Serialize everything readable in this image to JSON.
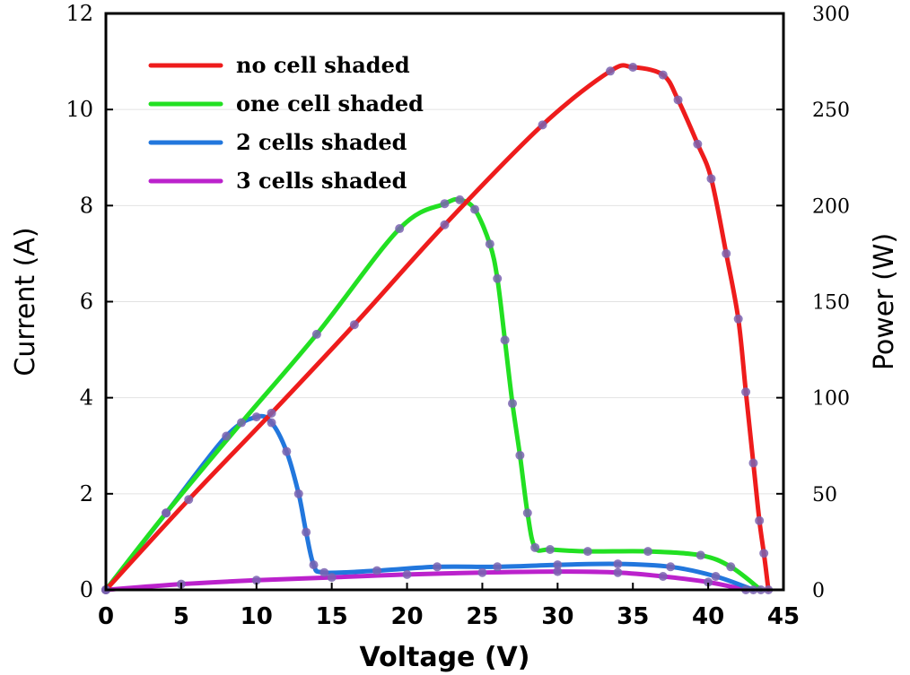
{
  "chart_data": {
    "type": "line",
    "xlabel": "Voltage (V)",
    "ylabel": "Current (A)",
    "y2label": "Power (W)",
    "xlim": [
      0,
      45
    ],
    "ylim": [
      0,
      12
    ],
    "y2lim": [
      0,
      300
    ],
    "xticks": [
      "0",
      "5",
      "10",
      "15",
      "20",
      "25",
      "30",
      "35",
      "40",
      "45"
    ],
    "yticks": [
      "0",
      "2",
      "4",
      "6",
      "8",
      "10",
      "12"
    ],
    "y2ticks": [
      "0",
      "50",
      "100",
      "150",
      "200",
      "250",
      "300"
    ],
    "grid": "horizontal",
    "legend_position": "top-left",
    "series": [
      {
        "name": "no cell shaded",
        "color": "#ee1c1c",
        "axis": "power",
        "points": [
          [
            0,
            0
          ],
          [
            5.5,
            47
          ],
          [
            11,
            92
          ],
          [
            16.5,
            138
          ],
          [
            22.5,
            190
          ],
          [
            29,
            242
          ],
          [
            33.5,
            270
          ],
          [
            35,
            272
          ],
          [
            37,
            268
          ],
          [
            38,
            255
          ],
          [
            39.3,
            232
          ],
          [
            40.2,
            214
          ],
          [
            41.2,
            175
          ],
          [
            42,
            141
          ],
          [
            42.5,
            103
          ],
          [
            43,
            66
          ],
          [
            43.4,
            36
          ],
          [
            43.7,
            19
          ],
          [
            44,
            0
          ]
        ]
      },
      {
        "name": "one cell shaded",
        "color": "#22e022",
        "axis": "power",
        "points": [
          [
            0,
            0
          ],
          [
            4,
            40
          ],
          [
            9,
            87
          ],
          [
            14,
            133
          ],
          [
            19.5,
            188
          ],
          [
            22.5,
            201
          ],
          [
            23.5,
            203
          ],
          [
            24.5,
            198
          ],
          [
            25.5,
            180
          ],
          [
            26,
            162
          ],
          [
            26.5,
            130
          ],
          [
            27,
            97
          ],
          [
            27.5,
            70
          ],
          [
            28,
            40
          ],
          [
            28.5,
            22
          ],
          [
            29.5,
            21
          ],
          [
            32,
            20
          ],
          [
            36,
            20
          ],
          [
            39.5,
            18
          ],
          [
            41.5,
            12
          ],
          [
            43.5,
            0
          ]
        ]
      },
      {
        "name": "2 cells shaded",
        "color": "#2277dd",
        "axis": "power",
        "points": [
          [
            0,
            0
          ],
          [
            4,
            40
          ],
          [
            8,
            80
          ],
          [
            10,
            90
          ],
          [
            11,
            87
          ],
          [
            12,
            72
          ],
          [
            12.8,
            50
          ],
          [
            13.3,
            30
          ],
          [
            13.8,
            13
          ],
          [
            14.5,
            9
          ],
          [
            18,
            10
          ],
          [
            22,
            12
          ],
          [
            26,
            12
          ],
          [
            30,
            13
          ],
          [
            34,
            13.5
          ],
          [
            37.5,
            12
          ],
          [
            40.5,
            7
          ],
          [
            43,
            0
          ]
        ]
      },
      {
        "name": "3 cells shaded",
        "color": "#bb22cc",
        "axis": "power",
        "points": [
          [
            0,
            0
          ],
          [
            5,
            3
          ],
          [
            10,
            5
          ],
          [
            15,
            6.5
          ],
          [
            20,
            8
          ],
          [
            25,
            9
          ],
          [
            30,
            9.5
          ],
          [
            34,
            9
          ],
          [
            37,
            7
          ],
          [
            40,
            4
          ],
          [
            42.5,
            0
          ]
        ]
      }
    ]
  }
}
